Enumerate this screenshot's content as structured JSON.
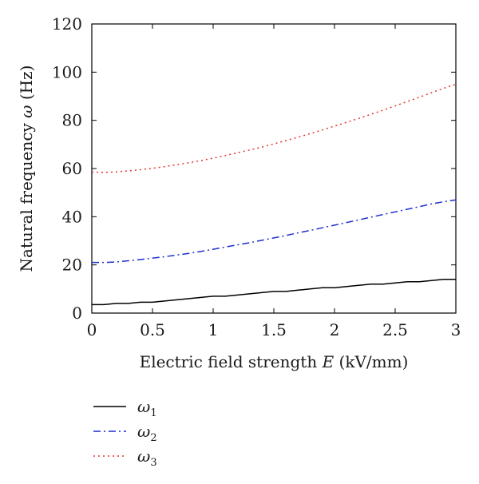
{
  "chart_data": {
    "type": "line",
    "xlabel_main": "Electric field strength ",
    "xlabel_var": "E",
    "xlabel_unit": " (kV/mm)",
    "ylabel_main": "Natural frequency ",
    "ylabel_var": "ω",
    "ylabel_unit": " (Hz)",
    "xlim": [
      0,
      3
    ],
    "ylim": [
      0,
      120
    ],
    "xticks": [
      0,
      0.5,
      1,
      1.5,
      2,
      2.5,
      3
    ],
    "xtick_labels": [
      "0",
      "0.5",
      "1",
      "1.5",
      "2",
      "2.5",
      "3"
    ],
    "yticks": [
      0,
      20,
      40,
      60,
      80,
      100,
      120
    ],
    "ytick_labels": [
      "0",
      "20",
      "40",
      "60",
      "80",
      "100",
      "120"
    ],
    "grid": false,
    "legend_placement": "below",
    "series": [
      {
        "name": "ω1",
        "symbol": "ω",
        "subscript": "1",
        "color": "#000000",
        "dash": "solid",
        "x": [
          0,
          0.1,
          0.2,
          0.3,
          0.4,
          0.5,
          0.6,
          0.7,
          0.8,
          0.9,
          1.0,
          1.1,
          1.2,
          1.3,
          1.4,
          1.5,
          1.6,
          1.7,
          1.8,
          1.9,
          2.0,
          2.1,
          2.2,
          2.3,
          2.4,
          2.5,
          2.6,
          2.7,
          2.8,
          2.9,
          3.0
        ],
        "y": [
          3.5,
          3.5,
          4.0,
          4.0,
          4.5,
          4.5,
          5.0,
          5.5,
          6.0,
          6.5,
          7.0,
          7.0,
          7.5,
          8.0,
          8.5,
          9.0,
          9.0,
          9.5,
          10.0,
          10.5,
          10.5,
          11.0,
          11.5,
          12.0,
          12.0,
          12.5,
          13.0,
          13.0,
          13.5,
          14.0,
          14.0
        ]
      },
      {
        "name": "ω2",
        "symbol": "ω",
        "subscript": "2",
        "color": "#1f2fd0",
        "dash": "dashdot",
        "x": [
          0,
          0.1,
          0.2,
          0.3,
          0.4,
          0.5,
          0.6,
          0.7,
          0.8,
          0.9,
          1.0,
          1.1,
          1.2,
          1.3,
          1.4,
          1.5,
          1.6,
          1.7,
          1.8,
          1.9,
          2.0,
          2.1,
          2.2,
          2.3,
          2.4,
          2.5,
          2.6,
          2.7,
          2.8,
          2.9,
          3.0
        ],
        "y": [
          21.0,
          21.0,
          21.2,
          21.7,
          22.2,
          22.8,
          23.4,
          24.1,
          24.8,
          25.6,
          26.5,
          27.4,
          28.3,
          29.2,
          30.2,
          31.2,
          32.2,
          33.3,
          34.3,
          35.4,
          36.5,
          37.6,
          38.7,
          39.8,
          40.9,
          42.0,
          43.1,
          44.2,
          45.3,
          46.2,
          47.0
        ]
      },
      {
        "name": "ω3",
        "symbol": "ω",
        "subscript": "3",
        "color": "#e3342f",
        "dash": "dotted",
        "x": [
          0,
          0.1,
          0.2,
          0.3,
          0.4,
          0.5,
          0.6,
          0.7,
          0.8,
          0.9,
          1.0,
          1.1,
          1.2,
          1.3,
          1.4,
          1.5,
          1.6,
          1.7,
          1.8,
          1.9,
          2.0,
          2.1,
          2.2,
          2.3,
          2.4,
          2.5,
          2.6,
          2.7,
          2.8,
          2.9,
          3.0
        ],
        "y": [
          58.5,
          58.4,
          58.6,
          59.0,
          59.5,
          60.1,
          60.8,
          61.6,
          62.4,
          63.3,
          64.3,
          65.4,
          66.5,
          67.7,
          68.9,
          70.2,
          71.6,
          73.0,
          74.5,
          76.0,
          77.6,
          79.2,
          80.8,
          82.5,
          84.2,
          86.0,
          87.8,
          89.6,
          91.5,
          93.3,
          95.0
        ]
      }
    ]
  }
}
